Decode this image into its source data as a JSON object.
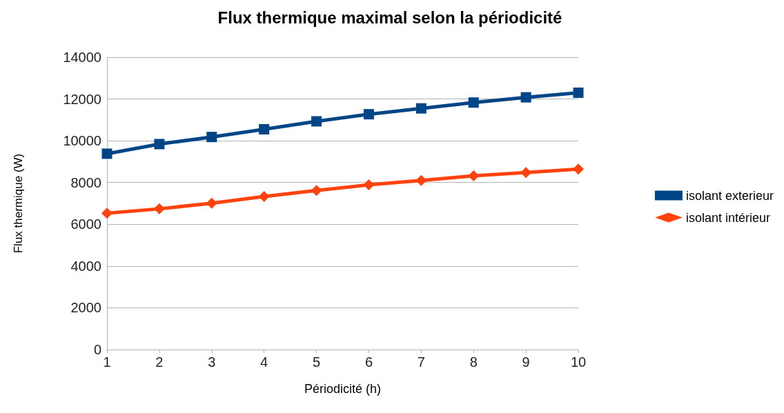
{
  "chart_data": {
    "type": "line",
    "title": "Flux thermique maximal selon la périodicité",
    "xlabel": "Périodicité (h)",
    "ylabel": "Flux thermique (W)",
    "categories": [
      "1",
      "2",
      "3",
      "4",
      "5",
      "6",
      "7",
      "8",
      "9",
      "10"
    ],
    "series": [
      {
        "name": "isolant exterieur",
        "color": "#004586",
        "values": [
          9380,
          9840,
          10180,
          10550,
          10930,
          11270,
          11550,
          11830,
          12080,
          12300
        ],
        "marker": "square"
      },
      {
        "name": "isolant intérieur",
        "color": "#ff420e",
        "values": [
          6530,
          6740,
          7010,
          7330,
          7620,
          7890,
          8100,
          8320,
          8480,
          8640
        ],
        "marker": "diamond"
      }
    ],
    "ylim": [
      0,
      14000
    ],
    "yticks": [
      0,
      2000,
      4000,
      6000,
      8000,
      10000,
      12000,
      14000
    ],
    "grid": "y",
    "legend": "right",
    "line_style": "solid"
  }
}
